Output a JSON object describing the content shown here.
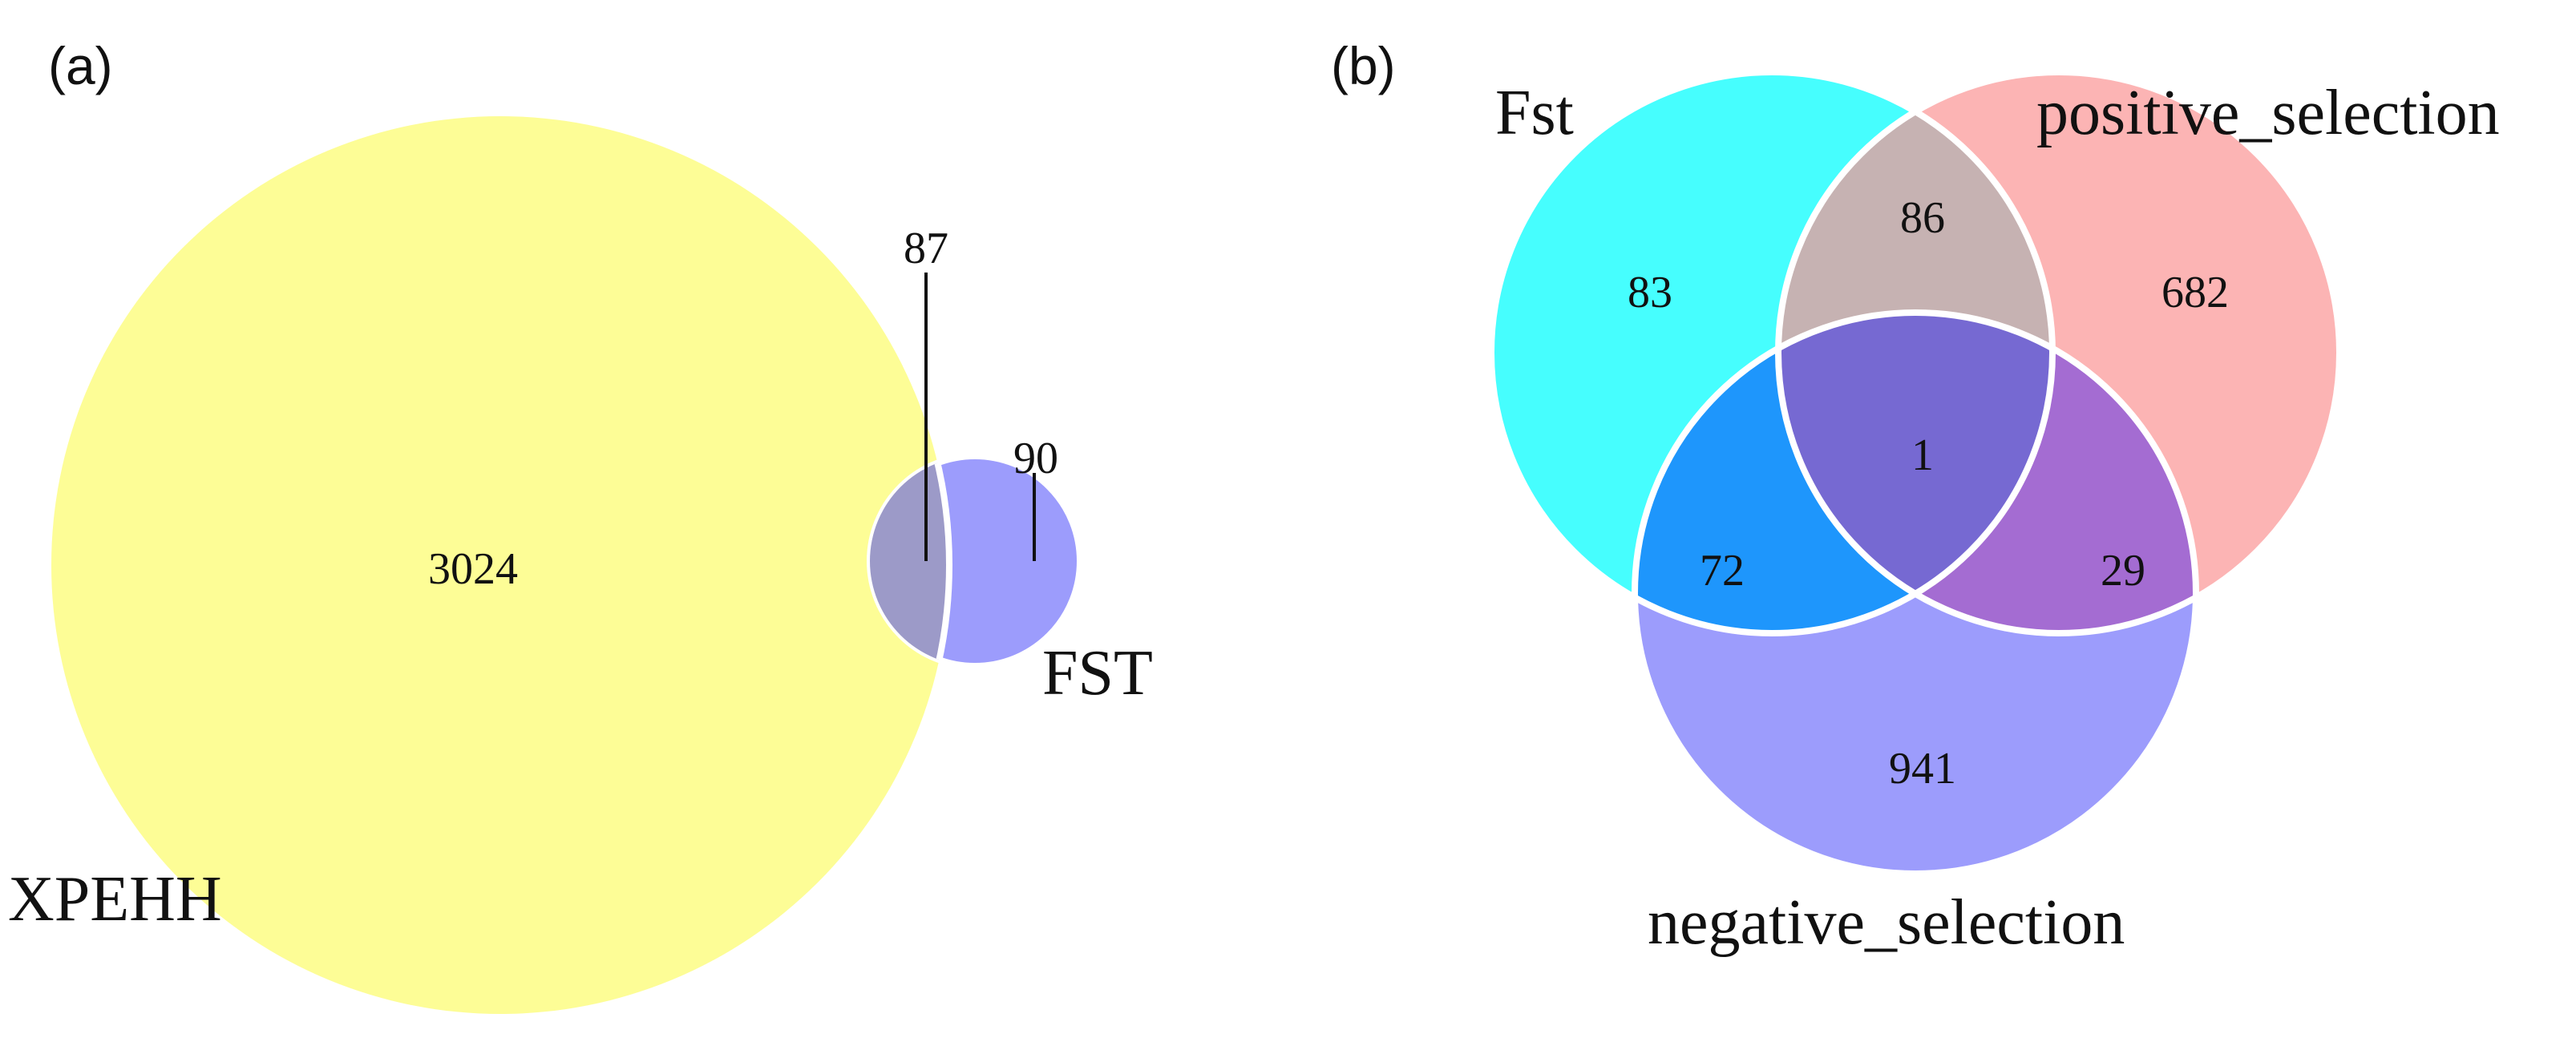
{
  "panel_a": {
    "label": "(a)",
    "sets": [
      {
        "id": "xpehh",
        "name": "XPEHH",
        "color": "#FDFD96"
      },
      {
        "id": "fst",
        "name": "FST",
        "color": "#9C9CFC"
      }
    ],
    "regions": {
      "xpehh_only": "3024",
      "intersection": "87",
      "fst_only": "90"
    },
    "intersection_color": "#9C9AC8"
  },
  "panel_b": {
    "label": "(b)",
    "sets": [
      {
        "id": "fst",
        "name": "Fst",
        "color": "#46FEFE"
      },
      {
        "id": "positive",
        "name": "positive_selection",
        "color": "#FCB4B4"
      },
      {
        "id": "negative",
        "name": "negative_selection",
        "color": "#9C9CFC"
      }
    ],
    "regions": {
      "fst_only": "83",
      "fst_positive": "86",
      "positive_only": "682",
      "all_three": "1",
      "fst_negative": "72",
      "positive_negative": "29",
      "negative_only": "941"
    },
    "region_colors": {
      "fst_positive": "#C6B2B2",
      "fst_negative": "#1E96FC",
      "positive_negative": "#A46CD2",
      "all_three": "#7669D2"
    }
  }
}
